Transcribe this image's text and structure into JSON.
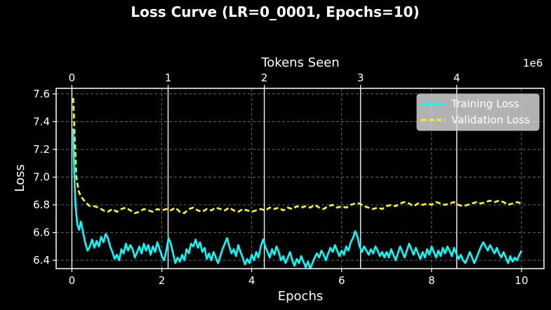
{
  "chart_data": {
    "type": "line",
    "title": "Loss Curve (LR=0_0001, Epochs=10)",
    "xlabel": "Epochs",
    "ylabel": "Loss",
    "x2label": "Tokens Seen",
    "x2_multiplier": "1e6",
    "xlim": [
      -0.35,
      10.5
    ],
    "ylim": [
      6.34,
      7.64
    ],
    "x_ticks": [
      0,
      2,
      4,
      6,
      8,
      10
    ],
    "y_ticks": [
      6.4,
      6.6,
      6.8,
      7.0,
      7.2,
      7.4,
      7.6
    ],
    "x2_ticks": [
      {
        "label": "0",
        "epoch": 0
      },
      {
        "label": "1",
        "epoch": 2.14
      },
      {
        "label": "2",
        "epoch": 4.28
      },
      {
        "label": "3",
        "epoch": 6.42
      },
      {
        "label": "4",
        "epoch": 8.56
      }
    ],
    "grid": true,
    "legend_position": "top-right",
    "series": [
      {
        "name": "Training Loss",
        "color": "#00ffff",
        "style": "solid",
        "points": [
          [
            0.03,
            7.35
          ],
          [
            0.05,
            7.05
          ],
          [
            0.08,
            6.8
          ],
          [
            0.12,
            6.66
          ],
          [
            0.16,
            6.62
          ],
          [
            0.2,
            6.68
          ],
          [
            0.25,
            6.6
          ],
          [
            0.3,
            6.52
          ],
          [
            0.35,
            6.47
          ],
          [
            0.4,
            6.5
          ],
          [
            0.45,
            6.55
          ],
          [
            0.5,
            6.49
          ],
          [
            0.55,
            6.54
          ],
          [
            0.6,
            6.5
          ],
          [
            0.65,
            6.57
          ],
          [
            0.7,
            6.53
          ],
          [
            0.75,
            6.59
          ],
          [
            0.8,
            6.56
          ],
          [
            0.85,
            6.5
          ],
          [
            0.9,
            6.46
          ],
          [
            0.95,
            6.41
          ],
          [
            1.0,
            6.44
          ],
          [
            1.05,
            6.4
          ],
          [
            1.1,
            6.48
          ],
          [
            1.15,
            6.45
          ],
          [
            1.2,
            6.52
          ],
          [
            1.25,
            6.47
          ],
          [
            1.3,
            6.51
          ],
          [
            1.35,
            6.48
          ],
          [
            1.4,
            6.42
          ],
          [
            1.45,
            6.46
          ],
          [
            1.5,
            6.5
          ],
          [
            1.55,
            6.45
          ],
          [
            1.6,
            6.52
          ],
          [
            1.65,
            6.47
          ],
          [
            1.7,
            6.51
          ],
          [
            1.75,
            6.44
          ],
          [
            1.8,
            6.5
          ],
          [
            1.85,
            6.46
          ],
          [
            1.9,
            6.53
          ],
          [
            1.95,
            6.48
          ],
          [
            2.0,
            6.43
          ],
          [
            2.05,
            6.4
          ],
          [
            2.1,
            6.47
          ],
          [
            2.15,
            6.56
          ],
          [
            2.2,
            6.52
          ],
          [
            2.25,
            6.45
          ],
          [
            2.3,
            6.38
          ],
          [
            2.35,
            6.42
          ],
          [
            2.4,
            6.39
          ],
          [
            2.45,
            6.44
          ],
          [
            2.5,
            6.4
          ],
          [
            2.55,
            6.48
          ],
          [
            2.6,
            6.45
          ],
          [
            2.65,
            6.52
          ],
          [
            2.7,
            6.5
          ],
          [
            2.75,
            6.55
          ],
          [
            2.8,
            6.49
          ],
          [
            2.85,
            6.53
          ],
          [
            2.9,
            6.46
          ],
          [
            2.95,
            6.49
          ],
          [
            3.0,
            6.41
          ],
          [
            3.05,
            6.45
          ],
          [
            3.1,
            6.4
          ],
          [
            3.15,
            6.46
          ],
          [
            3.2,
            6.42
          ],
          [
            3.25,
            6.38
          ],
          [
            3.3,
            6.43
          ],
          [
            3.35,
            6.48
          ],
          [
            3.4,
            6.52
          ],
          [
            3.45,
            6.56
          ],
          [
            3.5,
            6.5
          ],
          [
            3.55,
            6.45
          ],
          [
            3.6,
            6.48
          ],
          [
            3.65,
            6.43
          ],
          [
            3.7,
            6.51
          ],
          [
            3.75,
            6.46
          ],
          [
            3.8,
            6.42
          ],
          [
            3.85,
            6.37
          ],
          [
            3.9,
            6.41
          ],
          [
            3.95,
            6.38
          ],
          [
            4.0,
            6.44
          ],
          [
            4.05,
            6.4
          ],
          [
            4.1,
            6.46
          ],
          [
            4.15,
            6.42
          ],
          [
            4.2,
            6.5
          ],
          [
            4.25,
            6.55
          ],
          [
            4.3,
            6.5
          ],
          [
            4.35,
            6.46
          ],
          [
            4.4,
            6.42
          ],
          [
            4.45,
            6.48
          ],
          [
            4.5,
            6.44
          ],
          [
            4.55,
            6.5
          ],
          [
            4.6,
            6.46
          ],
          [
            4.65,
            6.4
          ],
          [
            4.7,
            6.43
          ],
          [
            4.75,
            6.38
          ],
          [
            4.8,
            6.42
          ],
          [
            4.85,
            6.46
          ],
          [
            4.9,
            6.4
          ],
          [
            4.95,
            6.36
          ],
          [
            5.0,
            6.41
          ],
          [
            5.05,
            6.38
          ],
          [
            5.1,
            6.43
          ],
          [
            5.15,
            6.39
          ],
          [
            5.2,
            6.35
          ],
          [
            5.25,
            6.39
          ],
          [
            5.3,
            6.34
          ],
          [
            5.35,
            6.38
          ],
          [
            5.4,
            6.42
          ],
          [
            5.45,
            6.45
          ],
          [
            5.5,
            6.42
          ],
          [
            5.55,
            6.47
          ],
          [
            5.6,
            6.44
          ],
          [
            5.65,
            6.4
          ],
          [
            5.7,
            6.45
          ],
          [
            5.75,
            6.49
          ],
          [
            5.8,
            6.46
          ],
          [
            5.85,
            6.51
          ],
          [
            5.9,
            6.47
          ],
          [
            5.95,
            6.43
          ],
          [
            6.0,
            6.47
          ],
          [
            6.05,
            6.44
          ],
          [
            6.1,
            6.5
          ],
          [
            6.15,
            6.47
          ],
          [
            6.2,
            6.53
          ],
          [
            6.25,
            6.56
          ],
          [
            6.3,
            6.61
          ],
          [
            6.35,
            6.57
          ],
          [
            6.4,
            6.5
          ],
          [
            6.45,
            6.46
          ],
          [
            6.5,
            6.5
          ],
          [
            6.55,
            6.47
          ],
          [
            6.6,
            6.44
          ],
          [
            6.65,
            6.48
          ],
          [
            6.7,
            6.45
          ],
          [
            6.75,
            6.5
          ],
          [
            6.8,
            6.47
          ],
          [
            6.85,
            6.43
          ],
          [
            6.9,
            6.46
          ],
          [
            6.95,
            6.42
          ],
          [
            7.0,
            6.46
          ],
          [
            7.05,
            6.42
          ],
          [
            7.1,
            6.48
          ],
          [
            7.15,
            6.44
          ],
          [
            7.2,
            6.4
          ],
          [
            7.25,
            6.45
          ],
          [
            7.3,
            6.5
          ],
          [
            7.35,
            6.46
          ],
          [
            7.4,
            6.42
          ],
          [
            7.45,
            6.47
          ],
          [
            7.5,
            6.52
          ],
          [
            7.55,
            6.48
          ],
          [
            7.6,
            6.44
          ],
          [
            7.65,
            6.49
          ],
          [
            7.7,
            6.45
          ],
          [
            7.75,
            6.41
          ],
          [
            7.8,
            6.46
          ],
          [
            7.85,
            6.42
          ],
          [
            7.9,
            6.48
          ],
          [
            7.95,
            6.44
          ],
          [
            8.0,
            6.5
          ],
          [
            8.05,
            6.46
          ],
          [
            8.1,
            6.42
          ],
          [
            8.15,
            6.47
          ],
          [
            8.2,
            6.43
          ],
          [
            8.25,
            6.49
          ],
          [
            8.3,
            6.45
          ],
          [
            8.35,
            6.5
          ],
          [
            8.4,
            6.47
          ],
          [
            8.45,
            6.43
          ],
          [
            8.5,
            6.49
          ],
          [
            8.55,
            6.45
          ],
          [
            8.6,
            6.41
          ],
          [
            8.65,
            6.44
          ],
          [
            8.7,
            6.4
          ],
          [
            8.75,
            6.38
          ],
          [
            8.8,
            6.42
          ],
          [
            8.85,
            6.46
          ],
          [
            8.9,
            6.42
          ],
          [
            8.95,
            6.38
          ],
          [
            9.0,
            6.42
          ],
          [
            9.05,
            6.46
          ],
          [
            9.1,
            6.5
          ],
          [
            9.15,
            6.53
          ],
          [
            9.2,
            6.5
          ],
          [
            9.25,
            6.47
          ],
          [
            9.3,
            6.51
          ],
          [
            9.35,
            6.48
          ],
          [
            9.4,
            6.45
          ],
          [
            9.45,
            6.49
          ],
          [
            9.5,
            6.45
          ],
          [
            9.55,
            6.42
          ],
          [
            9.6,
            6.46
          ],
          [
            9.65,
            6.42
          ],
          [
            9.7,
            6.38
          ],
          [
            9.75,
            6.43
          ],
          [
            9.8,
            6.39
          ],
          [
            9.85,
            6.42
          ],
          [
            9.9,
            6.4
          ],
          [
            9.95,
            6.44
          ],
          [
            10.0,
            6.47
          ]
        ]
      },
      {
        "name": "Validation Loss",
        "color": "#ffff00",
        "style": "dashed",
        "points": [
          [
            0.03,
            7.57
          ],
          [
            0.06,
            7.3
          ],
          [
            0.1,
            7.0
          ],
          [
            0.15,
            6.9
          ],
          [
            0.2,
            6.86
          ],
          [
            0.3,
            6.82
          ],
          [
            0.4,
            6.79
          ],
          [
            0.5,
            6.79
          ],
          [
            0.6,
            6.78
          ],
          [
            0.7,
            6.76
          ],
          [
            0.8,
            6.75
          ],
          [
            0.9,
            6.77
          ],
          [
            1.0,
            6.75
          ],
          [
            1.1,
            6.77
          ],
          [
            1.2,
            6.78
          ],
          [
            1.3,
            6.76
          ],
          [
            1.4,
            6.74
          ],
          [
            1.5,
            6.75
          ],
          [
            1.6,
            6.77
          ],
          [
            1.7,
            6.76
          ],
          [
            1.8,
            6.75
          ],
          [
            1.9,
            6.77
          ],
          [
            2.0,
            6.76
          ],
          [
            2.1,
            6.77
          ],
          [
            2.2,
            6.76
          ],
          [
            2.3,
            6.78
          ],
          [
            2.4,
            6.75
          ],
          [
            2.5,
            6.74
          ],
          [
            2.6,
            6.77
          ],
          [
            2.7,
            6.78
          ],
          [
            2.8,
            6.76
          ],
          [
            2.9,
            6.75
          ],
          [
            3.0,
            6.77
          ],
          [
            3.1,
            6.76
          ],
          [
            3.2,
            6.78
          ],
          [
            3.3,
            6.77
          ],
          [
            3.4,
            6.76
          ],
          [
            3.5,
            6.78
          ],
          [
            3.6,
            6.76
          ],
          [
            3.7,
            6.75
          ],
          [
            3.8,
            6.77
          ],
          [
            3.9,
            6.76
          ],
          [
            4.0,
            6.75
          ],
          [
            4.1,
            6.76
          ],
          [
            4.2,
            6.77
          ],
          [
            4.3,
            6.76
          ],
          [
            4.4,
            6.78
          ],
          [
            4.5,
            6.77
          ],
          [
            4.6,
            6.78
          ],
          [
            4.7,
            6.76
          ],
          [
            4.8,
            6.78
          ],
          [
            4.9,
            6.77
          ],
          [
            5.0,
            6.79
          ],
          [
            5.1,
            6.78
          ],
          [
            5.2,
            6.79
          ],
          [
            5.3,
            6.78
          ],
          [
            5.4,
            6.8
          ],
          [
            5.5,
            6.78
          ],
          [
            5.6,
            6.77
          ],
          [
            5.7,
            6.79
          ],
          [
            5.8,
            6.8
          ],
          [
            5.9,
            6.78
          ],
          [
            6.0,
            6.79
          ],
          [
            6.1,
            6.78
          ],
          [
            6.2,
            6.8
          ],
          [
            6.3,
            6.81
          ],
          [
            6.4,
            6.81
          ],
          [
            6.5,
            6.79
          ],
          [
            6.6,
            6.78
          ],
          [
            6.7,
            6.77
          ],
          [
            6.8,
            6.78
          ],
          [
            6.9,
            6.77
          ],
          [
            7.0,
            6.79
          ],
          [
            7.1,
            6.8
          ],
          [
            7.2,
            6.79
          ],
          [
            7.3,
            6.81
          ],
          [
            7.4,
            6.82
          ],
          [
            7.5,
            6.81
          ],
          [
            7.6,
            6.79
          ],
          [
            7.7,
            6.81
          ],
          [
            7.8,
            6.8
          ],
          [
            7.9,
            6.81
          ],
          [
            8.0,
            6.8
          ],
          [
            8.1,
            6.82
          ],
          [
            8.2,
            6.81
          ],
          [
            8.3,
            6.8
          ],
          [
            8.4,
            6.81
          ],
          [
            8.5,
            6.82
          ],
          [
            8.6,
            6.8
          ],
          [
            8.7,
            6.79
          ],
          [
            8.8,
            6.8
          ],
          [
            8.9,
            6.81
          ],
          [
            9.0,
            6.82
          ],
          [
            9.1,
            6.81
          ],
          [
            9.2,
            6.82
          ],
          [
            9.3,
            6.83
          ],
          [
            9.4,
            6.82
          ],
          [
            9.5,
            6.83
          ],
          [
            9.6,
            6.82
          ],
          [
            9.7,
            6.8
          ],
          [
            9.8,
            6.81
          ],
          [
            9.9,
            6.82
          ],
          [
            10.0,
            6.81
          ]
        ]
      }
    ]
  }
}
